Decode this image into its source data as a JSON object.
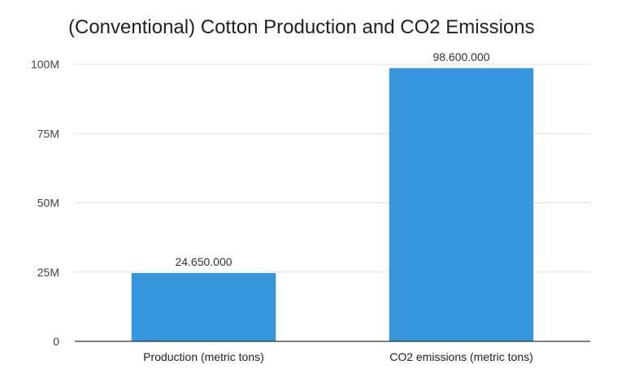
{
  "chart_data": {
    "type": "bar",
    "title": "(Conventional) Cotton Production and CO2 Emissions",
    "categories": [
      "Production (metric tons)",
      "CO2 emissions (metric tons)"
    ],
    "values": [
      24650000,
      98600000
    ],
    "data_labels": [
      "24.650.000",
      "98.600.000"
    ],
    "ylim": [
      0,
      100000000
    ],
    "yticks": [
      0,
      25000000,
      50000000,
      75000000,
      100000000
    ],
    "ytick_labels": [
      "0",
      "25M",
      "50M",
      "75M",
      "100M"
    ],
    "xlabel": "",
    "ylabel": "",
    "grid": true,
    "legend": "none",
    "colors": {
      "bar": "#3797dc",
      "grid": "#e0e0e0",
      "axis": "#333333"
    }
  }
}
